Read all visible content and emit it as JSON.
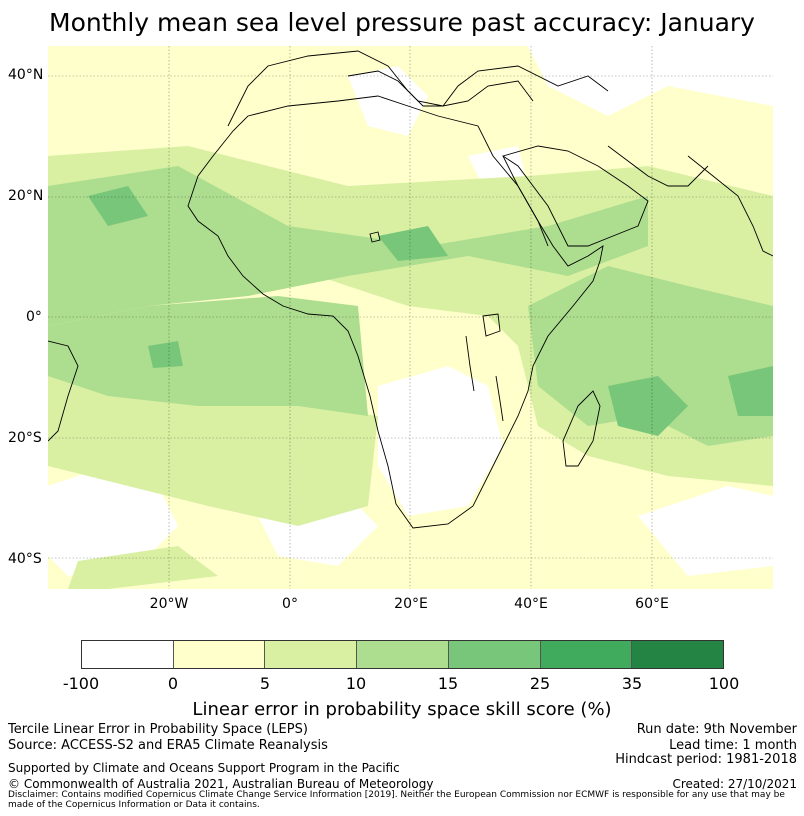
{
  "title": "Monthly mean sea level pressure past accuracy: January",
  "map": {
    "lat_labels": [
      "40°N",
      "20°N",
      "0°",
      "20°S",
      "40°S"
    ],
    "lon_labels": [
      "20°W",
      "0°",
      "20°E",
      "40°E",
      "60°E"
    ],
    "extent": {
      "lon_min": -40,
      "lon_max": 80,
      "lat_min": -45,
      "lat_max": 45
    },
    "background_color": "#ffffcc",
    "land_mask_color": "#ffffff",
    "coastline_color": "#000000"
  },
  "colorbar": {
    "ticks": [
      "-100",
      "0",
      "5",
      "10",
      "15",
      "25",
      "35",
      "100"
    ],
    "colors": [
      "#ffffff",
      "#ffffcc",
      "#d9f0a3",
      "#addd8e",
      "#78c679",
      "#41ab5d",
      "#238443"
    ],
    "label": "Linear error in probability space skill score (%)"
  },
  "footer": {
    "method": "Tercile Linear Error in Probability Space (LEPS)",
    "source": "Source: ACCESS-S2 and ERA5 Climate Reanalysis",
    "support": "Supported by Climate and Oceans Support Program in the Pacific",
    "copyright": "© Commonwealth of Australia 2021, Australian Bureau of Meteorology",
    "run_date": "Run date: 9th November",
    "lead_time": "Lead time: 1 month",
    "hindcast": "Hindcast period: 1981-2018",
    "created": "Created: 27/10/2021",
    "disclaimer": "Disclaimer: Contains modified Copernicus Climate Change Service Information [2019]. Neither the European Commission nor ECMWF is responsible for any use that may be made of the Copernicus Information or Data it contains."
  }
}
